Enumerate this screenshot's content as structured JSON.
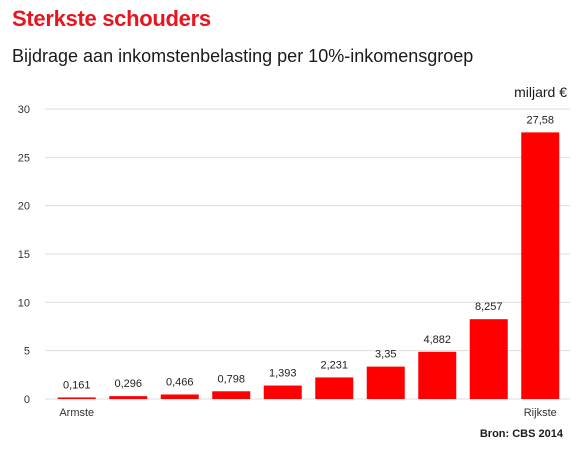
{
  "header": {
    "title": "Sterkste schouders",
    "subtitle": "Bijdrage aan inkomstenbelasting per 10%-inkomensgroep",
    "unit": "miljard €",
    "source": "Bron: CBS 2014"
  },
  "colors": {
    "bar": "#ff0000",
    "title": "#e8141e",
    "grid": "#dddddd"
  },
  "chart_data": {
    "type": "bar",
    "categories": [
      "Armste",
      "",
      "",
      "",
      "",
      "",
      "",
      "",
      "",
      "Rijkste"
    ],
    "values": [
      0.161,
      0.296,
      0.466,
      0.798,
      1.393,
      2.231,
      3.35,
      4.882,
      8.257,
      27.58
    ],
    "data_labels": [
      "0,161",
      "0,296",
      "0,466",
      "0,798",
      "1,393",
      "2,231",
      "3,35",
      "4,882",
      "8,257",
      "27,58"
    ],
    "yticks": [
      0,
      5,
      10,
      15,
      20,
      25,
      30
    ],
    "ylim": [
      0,
      30
    ],
    "grid": true
  }
}
